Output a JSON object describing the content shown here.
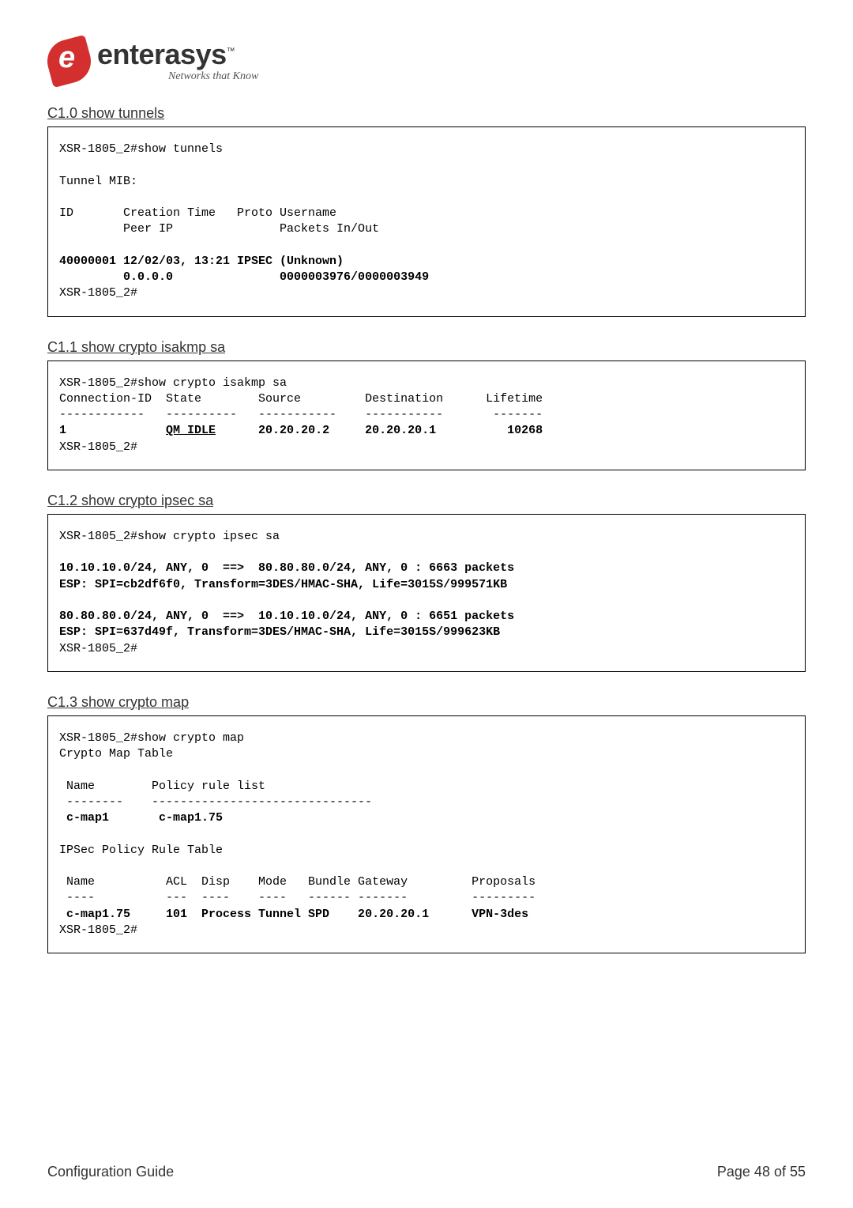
{
  "logo": {
    "brand": "enterasys",
    "tm": "™",
    "tagline": "Networks that Know"
  },
  "sections": {
    "s1": {
      "heading": "C1.0 show tunnels",
      "line1": "XSR-1805_2#show tunnels",
      "line2": "Tunnel MIB:",
      "line3": "ID       Creation Time   Proto Username",
      "line4": "         Peer IP               Packets In/Out",
      "line5": "40000001 12/02/03, 13:21 IPSEC (Unknown)",
      "line6": "         0.0.0.0               0000003976/0000003949",
      "line7": "XSR-1805_2#"
    },
    "s2": {
      "heading": "C1.1 show crypto isakmp sa",
      "line1": "XSR-1805_2#show crypto isakmp sa",
      "line2": "Connection-ID  State        Source         Destination      Lifetime",
      "line3": "------------   ----------   -----------    -----------       -------",
      "line4a": "1              ",
      "line4b": "QM_IDLE",
      "line4c": "      20.20.20.2     20.20.20.1          10268",
      "line5": "XSR-1805_2#"
    },
    "s3": {
      "heading": "C1.2 show crypto ipsec sa",
      "line1": "XSR-1805_2#show crypto ipsec sa",
      "line2": "10.10.10.0/24, ANY, 0  ==>  80.80.80.0/24, ANY, 0 : 6663 packets",
      "line3": "ESP: SPI=cb2df6f0, Transform=3DES/HMAC-SHA, Life=3015S/999571KB",
      "line4": "80.80.80.0/24, ANY, 0  ==>  10.10.10.0/24, ANY, 0 : 6651 packets",
      "line5": "ESP: SPI=637d49f, Transform=3DES/HMAC-SHA, Life=3015S/999623KB",
      "line6": "XSR-1805_2#"
    },
    "s4": {
      "heading": "C1.3 show crypto map",
      "line1": "XSR-1805_2#show crypto map",
      "line2": "Crypto Map Table",
      "line3": " Name        Policy rule list",
      "line4": " --------    -------------------------------",
      "line5": " c-map1       c-map1.75",
      "line6": "IPSec Policy Rule Table",
      "line7": " Name          ACL  Disp    Mode   Bundle Gateway         Proposals",
      "line8": " ----          ---  ----    ----   ------ -------         ---------",
      "line9": " c-map1.75     101  Process Tunnel SPD    20.20.20.1      VPN-3des",
      "line10": "XSR-1805_2#"
    }
  },
  "footer": {
    "left": "Configuration Guide",
    "right": "Page 48 of 55"
  }
}
